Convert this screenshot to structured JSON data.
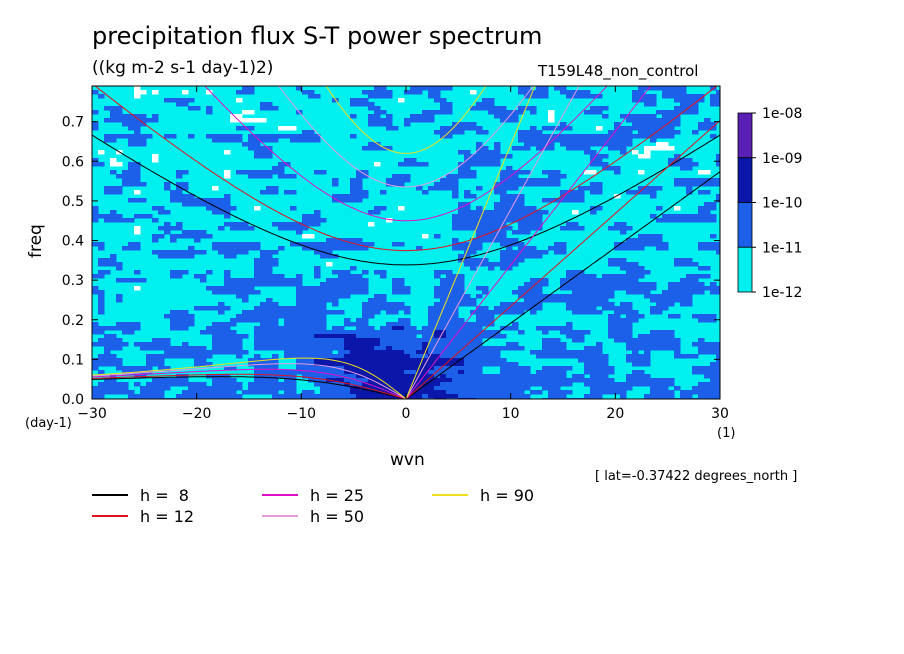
{
  "chart_data": {
    "type": "heatmap",
    "title": "precipitation flux S-T power spectrum",
    "subtitle": "((kg m-2 s-1 day-1)2)",
    "run_label": "T159L48_non_control",
    "xlabel": "wvn",
    "ylabel": "freq",
    "x_unit": "(1)",
    "y_unit": "(day-1)",
    "xlim": [
      -30,
      30
    ],
    "ylim": [
      0,
      0.79
    ],
    "xticks": [
      "-30",
      "-20",
      "-10",
      "0",
      "10",
      "20",
      "30"
    ],
    "yticks": [
      "0.0",
      "0.1",
      "0.2",
      "0.3",
      "0.4",
      "0.5",
      "0.6",
      "0.7"
    ],
    "colorbar": {
      "labels": [
        "1e-08",
        "1e-09",
        "1e-10",
        "1e-11",
        "1e-12"
      ],
      "colors": [
        "#5a1fb5",
        "#0a17a8",
        "#1c5fe8",
        "#00f0f0"
      ]
    },
    "field_colors": {
      "white": "#ffffff",
      "cyan": "#00f0f0",
      "blue": "#1c5fe8",
      "navy": "#0a17a8"
    },
    "annotation": "[ lat=-0.37422 degrees_north ]",
    "legend": [
      {
        "label": "h =  8",
        "color": "#000000"
      },
      {
        "label": "h = 12",
        "color": "#e0141e"
      },
      {
        "label": "h = 25",
        "color": "#e010c8"
      },
      {
        "label": "h = 50",
        "color": "#e89ae0"
      },
      {
        "label": "h = 90",
        "color": "#f0e020"
      }
    ],
    "equivalent_depths": [
      8,
      12,
      25,
      50,
      90
    ]
  }
}
